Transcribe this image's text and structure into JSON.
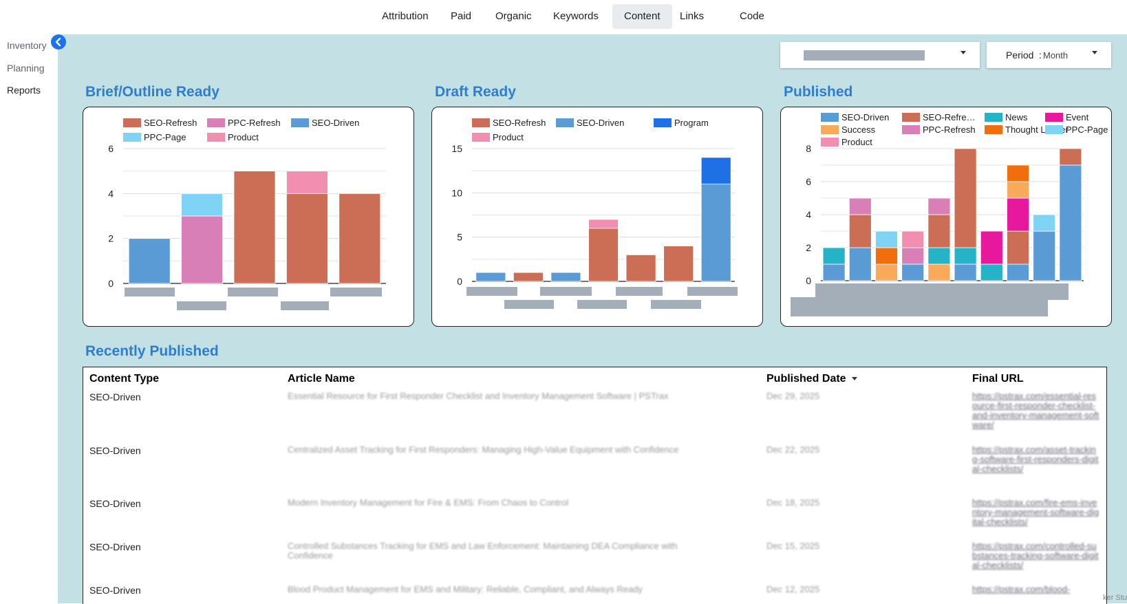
{
  "nav": {
    "tabs": [
      "Attribution",
      "Paid",
      "Organic",
      "Keywords",
      "Content",
      "Links",
      "Code"
    ],
    "active": "Content"
  },
  "sidebar": {
    "items": [
      "Inventory",
      "Planning",
      "Reports"
    ],
    "active": "Reports"
  },
  "filters": {
    "period_label": "Period",
    "period_value": "Month"
  },
  "colors": {
    "seo_refresh": "#cc6d56",
    "ppc_refresh": "#d97fb8",
    "seo_driven": "#5b9bd5",
    "ppc_page": "#7fd4f5",
    "product": "#f28fb1",
    "program": "#1f6fe5",
    "news": "#26b2c7",
    "event": "#e8189c",
    "success": "#f8a95a",
    "thought_leader": "#f06f0c",
    "accent": "#2d7dd2"
  },
  "chart_data": [
    {
      "type": "bar",
      "title": "Brief/Outline Ready",
      "stacked": true,
      "legend": [
        "SEO-Refresh",
        "PPC-Refresh",
        "SEO-Driven",
        "PPC-Page",
        "Product"
      ],
      "ylim": [
        0,
        6
      ],
      "yticks": [
        "0",
        "2",
        "4",
        "6"
      ],
      "series": [
        {
          "name": "SEO-Driven",
          "values": [
            2,
            0,
            0,
            0,
            0
          ]
        },
        {
          "name": "PPC-Refresh",
          "values": [
            0,
            3,
            0,
            0,
            0
          ]
        },
        {
          "name": "PPC-Page",
          "values": [
            0,
            1,
            0,
            0,
            0
          ]
        },
        {
          "name": "SEO-Refresh",
          "values": [
            0,
            0,
            5,
            4,
            4
          ]
        },
        {
          "name": "Product",
          "values": [
            0,
            0,
            0,
            1,
            0
          ]
        }
      ]
    },
    {
      "type": "bar",
      "title": "Draft Ready",
      "stacked": true,
      "legend": [
        "SEO-Refresh",
        "SEO-Driven",
        "Program",
        "Product"
      ],
      "ylim": [
        0,
        15
      ],
      "yticks": [
        "0",
        "5",
        "10",
        "15"
      ],
      "series": [
        {
          "name": "SEO-Driven",
          "values": [
            1,
            0,
            1,
            0,
            0,
            0,
            11
          ]
        },
        {
          "name": "SEO-Refresh",
          "values": [
            0,
            1,
            0,
            6,
            3,
            4,
            0
          ]
        },
        {
          "name": "Product",
          "values": [
            0,
            0,
            0,
            1,
            0,
            0,
            0
          ]
        },
        {
          "name": "Program",
          "values": [
            0,
            0,
            0,
            0,
            0,
            0,
            3
          ]
        }
      ]
    },
    {
      "type": "bar",
      "title": "Published",
      "stacked": true,
      "legend": [
        "SEO-Driven",
        "SEO-Refre…",
        "News",
        "Event",
        "Success",
        "PPC-Refresh",
        "Thought Leader",
        "PPC-Page",
        "Product"
      ],
      "ylim": [
        0,
        8
      ],
      "yticks": [
        "0",
        "2",
        "4",
        "6",
        "8"
      ],
      "series": [
        {
          "name": "SEO-Driven",
          "values": [
            1,
            2,
            0,
            1,
            0,
            1,
            0,
            1,
            3,
            7
          ]
        },
        {
          "name": "Success",
          "values": [
            0,
            0,
            1,
            0,
            1,
            0,
            0,
            0,
            0,
            0
          ]
        },
        {
          "name": "News",
          "values": [
            1,
            0,
            0,
            0,
            1,
            1,
            1,
            0,
            0,
            0
          ]
        },
        {
          "name": "SEO-Refresh",
          "values": [
            0,
            2,
            0,
            0,
            2,
            6,
            0,
            2,
            0,
            1
          ]
        },
        {
          "name": "Thought Leader",
          "values": [
            0,
            0,
            1,
            0,
            0,
            0,
            0,
            0,
            0,
            0
          ]
        },
        {
          "name": "PPC-Refresh",
          "values": [
            0,
            1,
            0,
            1,
            1,
            0,
            0,
            0,
            0,
            0
          ]
        },
        {
          "name": "PPC-Page",
          "values": [
            0,
            0,
            1,
            0,
            0,
            0,
            0,
            0,
            1,
            0
          ]
        },
        {
          "name": "Product",
          "values": [
            0,
            0,
            0,
            1,
            0,
            0,
            0,
            0,
            0,
            0
          ]
        },
        {
          "name": "Event",
          "values": [
            0,
            0,
            0,
            0,
            0,
            0,
            2,
            2,
            0,
            0
          ]
        },
        {
          "name": "Success2",
          "values": [
            0,
            0,
            0,
            0,
            0,
            0,
            0,
            1,
            0,
            0
          ]
        },
        {
          "name": "Thought Leader2",
          "values": [
            0,
            0,
            0,
            0,
            0,
            0,
            0,
            1,
            0,
            0
          ]
        }
      ]
    }
  ],
  "recent": {
    "title": "Recently Published",
    "columns": [
      "Content Type",
      "Article Name",
      "Published Date",
      "Final URL"
    ],
    "rows": [
      {
        "type": "SEO-Driven",
        "name": "Essential Resource for First Responder Checklist and Inventory Management Software | PSTrax",
        "date": "Dec 29, 2025",
        "url": "https://pstrax.com/essential-resource-first-responder-checklist-and-inventory-management-software/"
      },
      {
        "type": "SEO-Driven",
        "name": "Centralized Asset Tracking for First Responders: Managing High-Value Equipment with Confidence",
        "date": "Dec 22, 2025",
        "url": "https://pstrax.com/asset-tracking-software-first-responders-digital-checklists/"
      },
      {
        "type": "SEO-Driven",
        "name": "Modern Inventory Management for Fire & EMS: From Chaos to Control",
        "date": "Dec 18, 2025",
        "url": "https://pstrax.com/fire-ems-inventory-management-software-digital-checklists/"
      },
      {
        "type": "SEO-Driven",
        "name": "Controlled Substances Tracking for EMS and Law Enforcement: Maintaining DEA Compliance with Confidence",
        "date": "Dec 15, 2025",
        "url": "https://pstrax.com/controlled-substances-tracking-software-digital-checklists/"
      },
      {
        "type": "SEO-Driven",
        "name": "Blood Product Management for EMS and Military: Reliable, Compliant, and Always Ready",
        "date": "Dec 12, 2025",
        "url": "https://pstrax.com/blood-"
      }
    ]
  },
  "corner_text": "ker Stu"
}
